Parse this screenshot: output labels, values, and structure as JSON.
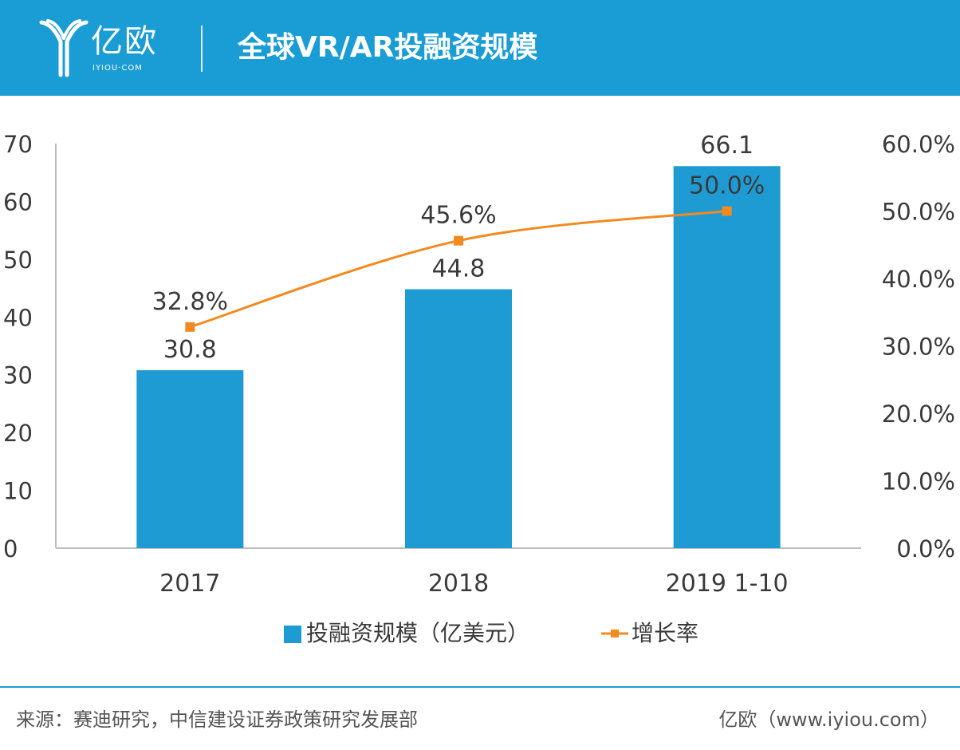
{
  "header": {
    "logo_text": "亿欧",
    "logo_sub": "IYIOU·COM",
    "title": "全球VR/AR投融资规模"
  },
  "colors": {
    "accent": "#1a9cd4",
    "bar": "#1f9bd3",
    "line": "#f28a20"
  },
  "chart_data": {
    "type": "bar",
    "title": "全球VR/AR投融资规模",
    "categories": [
      "2017",
      "2018",
      "2019 1-10"
    ],
    "series": [
      {
        "name": "投融资规模（亿美元）",
        "type": "bar",
        "axis": "left",
        "values": [
          30.8,
          44.8,
          66.1
        ],
        "labels": [
          "30.8",
          "44.8",
          "66.1"
        ]
      },
      {
        "name": "增长率",
        "type": "line",
        "axis": "right",
        "values": [
          0.328,
          0.456,
          0.5
        ],
        "labels": [
          "32.8%",
          "45.6%",
          "50.0%"
        ]
      }
    ],
    "y_left": {
      "ylim": [
        0,
        70
      ],
      "ticks": [
        "0",
        "10",
        "20",
        "30",
        "40",
        "50",
        "60",
        "70"
      ]
    },
    "y_right": {
      "ylim": [
        0,
        0.6
      ],
      "ticks": [
        "0.0%",
        "10.0%",
        "20.0%",
        "30.0%",
        "40.0%",
        "50.0%",
        "60.0%"
      ]
    },
    "grid": false,
    "legend_position": "bottom"
  },
  "legend": {
    "bar_label": "投融资规模（亿美元）",
    "line_label": "增长率"
  },
  "footer": {
    "source": "来源：赛迪研究，中信建设证券政策研究发展部",
    "site": "亿欧（www.iyiou.com）"
  }
}
